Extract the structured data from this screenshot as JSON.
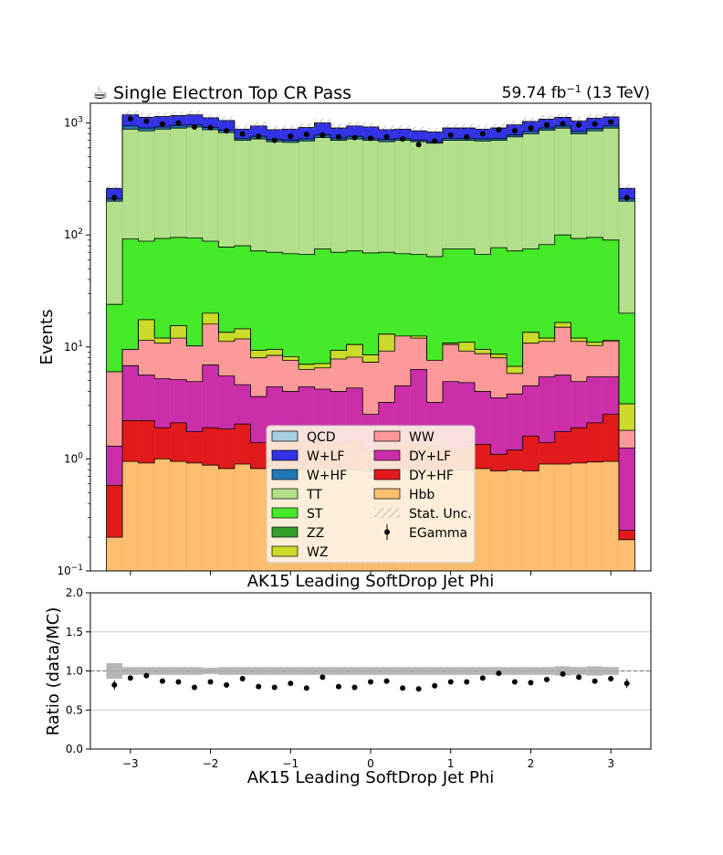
{
  "header": {
    "title_icon": "coffee-cup-icon",
    "title_icon_glyph": "☕",
    "title": "Single Electron Top CR Pass",
    "lumi": "59.74 fb",
    "lumi_exp": "−1",
    "energy": " (13 TeV)"
  },
  "chart_data": [
    {
      "type": "bar",
      "stacked": true,
      "log_y": true,
      "ylabel": "Events",
      "xlabel": "AK15 Leading SoftDrop Jet Phi",
      "xlim": [
        -3.5,
        3.5
      ],
      "ylim": [
        0.1,
        1500
      ],
      "yticks": [
        0.1,
        1,
        10,
        100,
        1000
      ],
      "ytick_labels": [
        {
          "base": "10",
          "exp": "−1"
        },
        {
          "base": "10",
          "exp": "0"
        },
        {
          "base": "10",
          "exp": "1"
        },
        {
          "base": "10",
          "exp": "2"
        },
        {
          "base": "10",
          "exp": "3"
        }
      ],
      "bin_edges": [
        -3.3,
        -3.1,
        -2.9,
        -2.7,
        -2.5,
        -2.3,
        -2.1,
        -1.9,
        -1.7,
        -1.5,
        -1.3,
        -1.1,
        -0.9,
        -0.7,
        -0.5,
        -0.3,
        -0.1,
        0.1,
        0.3,
        0.5,
        0.7,
        0.9,
        1.1,
        1.3,
        1.5,
        1.7,
        1.9,
        2.1,
        2.3,
        2.5,
        2.7,
        2.9,
        3.1,
        3.3
      ],
      "stack_order": [
        "Hbb",
        "DY+HF",
        "DY+LF",
        "WW",
        "WZ",
        "ZZ",
        "ST",
        "TT",
        "W+HF",
        "W+LF",
        "QCD"
      ],
      "cumulative_tops": [
        {
          "name": "Hbb",
          "values": [
            0.2,
            0.95,
            0.92,
            1.0,
            0.95,
            0.92,
            0.88,
            0.82,
            0.9,
            0.82,
            0.85,
            0.83,
            0.8,
            0.82,
            0.82,
            0.8,
            0.78,
            0.8,
            0.82,
            0.8,
            0.78,
            0.8,
            0.8,
            0.82,
            0.78,
            0.8,
            0.78,
            0.9,
            0.9,
            0.92,
            0.94,
            0.95,
            0.19
          ]
        },
        {
          "name": "DY+HF",
          "values": [
            0.58,
            2.2,
            2.2,
            1.9,
            2.1,
            1.75,
            1.9,
            1.85,
            2.05,
            1.4,
            1.5,
            1.55,
            1.45,
            1.5,
            1.4,
            1.45,
            1.2,
            1.3,
            1.4,
            1.35,
            1.3,
            1.25,
            1.3,
            1.35,
            1.1,
            1.2,
            1.6,
            1.4,
            1.75,
            1.9,
            2.1,
            2.5,
            0.23
          ]
        },
        {
          "name": "DY+LF",
          "values": [
            1.3,
            6.8,
            5.6,
            5.2,
            5.1,
            4.9,
            6.9,
            5.5,
            4.6,
            3.6,
            4.4,
            4.0,
            4.4,
            4.2,
            4.0,
            4.3,
            2.5,
            3.2,
            4.5,
            6.3,
            3.2,
            4.9,
            4.8,
            4.0,
            3.5,
            3.8,
            4.5,
            5.4,
            5.6,
            4.9,
            5.4,
            5.4,
            1.25
          ]
        },
        {
          "name": "WW",
          "values": [
            6.0,
            9.5,
            11.5,
            10.8,
            12.0,
            10.2,
            16.0,
            11.2,
            11.8,
            8.0,
            8.4,
            7.6,
            6.3,
            6.5,
            7.8,
            8.1,
            7.3,
            9.2,
            12.5,
            12.0,
            7.6,
            10.5,
            9.2,
            8.7,
            8.0,
            5.8,
            10.8,
            11.2,
            15.0,
            11.2,
            10.3,
            11.2,
            1.8
          ]
        },
        {
          "name": "WZ",
          "values": [
            6.0,
            9.5,
            17.5,
            12.0,
            15.5,
            10.2,
            20.0,
            13.5,
            14.5,
            9.3,
            9.5,
            8.2,
            7.0,
            7.1,
            9.3,
            10.5,
            8.5,
            13.0,
            12.5,
            12.5,
            7.6,
            10.8,
            11.0,
            9.5,
            8.6,
            6.7,
            13.5,
            12.0,
            16.5,
            12.0,
            11.0,
            11.5,
            3.1
          ]
        },
        {
          "name": "ZZ",
          "values": [
            6.0,
            9.5,
            17.5,
            12.0,
            15.5,
            10.2,
            20.0,
            13.5,
            14.5,
            9.3,
            9.5,
            8.2,
            7.0,
            7.1,
            9.3,
            10.5,
            8.5,
            13.0,
            12.5,
            12.5,
            7.6,
            10.8,
            11.0,
            9.5,
            8.6,
            6.7,
            13.5,
            12.0,
            16.5,
            12.0,
            11.0,
            11.5,
            3.1
          ]
        },
        {
          "name": "ST",
          "values": [
            24.0,
            92.0,
            88.0,
            93.0,
            95.0,
            94.0,
            88.0,
            78.0,
            80.0,
            72.0,
            70.0,
            68.0,
            67.0,
            75.0,
            70.0,
            72.0,
            69.0,
            70.0,
            68.0,
            67.0,
            64.0,
            75.0,
            75.0,
            67.0,
            77.0,
            72.0,
            75.0,
            82.0,
            100.0,
            93.0,
            95.0,
            90.0,
            20.0
          ]
        },
        {
          "name": "TT",
          "values": [
            200.0,
            880.0,
            850.0,
            880.0,
            900.0,
            920.0,
            870.0,
            820.0,
            700.0,
            720.0,
            680.0,
            670.0,
            690.0,
            740.0,
            700.0,
            720.0,
            700.0,
            680.0,
            700.0,
            680.0,
            660.0,
            700.0,
            700.0,
            690.0,
            700.0,
            750.0,
            800.0,
            860.0,
            900.0,
            800.0,
            850.0,
            900.0,
            200.0
          ]
        },
        {
          "name": "W+HF",
          "values": [
            210.0,
            940.0,
            900.0,
            920.0,
            950.0,
            960.0,
            910.0,
            860.0,
            730.0,
            760.0,
            710.0,
            700.0,
            720.0,
            780.0,
            730.0,
            760.0,
            730.0,
            710.0,
            730.0,
            700.0,
            680.0,
            730.0,
            730.0,
            720.0,
            730.0,
            780.0,
            840.0,
            900.0,
            940.0,
            840.0,
            890.0,
            940.0,
            210.0
          ]
        },
        {
          "name": "W+LF",
          "values": [
            260.0,
            1180.0,
            1120.0,
            1140.0,
            1160.0,
            1180.0,
            1110.0,
            1050.0,
            880.0,
            940.0,
            870.0,
            880.0,
            910.0,
            1000.0,
            900.0,
            940.0,
            920.0,
            870.0,
            880.0,
            850.0,
            830.0,
            900.0,
            900.0,
            880.0,
            900.0,
            960.0,
            1030.0,
            1080.0,
            1120.0,
            1040.0,
            1100.0,
            1130.0,
            260.0
          ]
        },
        {
          "name": "QCD",
          "values": [
            260.0,
            1180.0,
            1120.0,
            1140.0,
            1160.0,
            1180.0,
            1110.0,
            1050.0,
            880.0,
            940.0,
            870.0,
            880.0,
            910.0,
            1000.0,
            900.0,
            940.0,
            920.0,
            870.0,
            880.0,
            850.0,
            830.0,
            900.0,
            900.0,
            880.0,
            900.0,
            960.0,
            1030.0,
            1080.0,
            1120.0,
            1040.0,
            1100.0,
            1130.0,
            260.0
          ]
        }
      ],
      "data_points": {
        "name": "EGamma",
        "x": [
          -3.2,
          -3.0,
          -2.8,
          -2.6,
          -2.4,
          -2.2,
          -2.0,
          -1.8,
          -1.6,
          -1.4,
          -1.2,
          -1.0,
          -0.8,
          -0.6,
          -0.4,
          -0.2,
          0.0,
          0.2,
          0.4,
          0.6,
          0.8,
          1.0,
          1.2,
          1.4,
          1.6,
          1.8,
          2.0,
          2.2,
          2.4,
          2.6,
          2.8,
          3.0,
          3.2
        ],
        "y": [
          215,
          1090,
          1040,
          980,
          1000,
          920,
          910,
          850,
          800,
          760,
          700,
          760,
          790,
          780,
          750,
          740,
          730,
          750,
          720,
          640,
          690,
          780,
          750,
          800,
          870,
          850,
          900,
          960,
          980,
          960,
          980,
          1020,
          215
        ]
      }
    },
    {
      "type": "scatter",
      "ylabel": "Ratio (data/MC)",
      "xlabel": "AK15 Leading SoftDrop Jet Phi",
      "xlim": [
        -3.5,
        3.5
      ],
      "ylim": [
        0.0,
        2.0
      ],
      "yticks": [
        0.0,
        0.5,
        1.0,
        1.5,
        2.0
      ],
      "ytick_labels": [
        "0.0",
        "0.5",
        "1.0",
        "1.5",
        "2.0"
      ],
      "xticks": [
        -3,
        -2,
        -1,
        0,
        1,
        2,
        3
      ],
      "xtick_labels": [
        "−3",
        "−2",
        "−1",
        "0",
        "1",
        "2",
        "3"
      ],
      "grid_y": [
        0.5,
        1.0,
        1.5
      ],
      "reference_line": 1.0,
      "ratio": {
        "x": [
          -3.2,
          -3.0,
          -2.8,
          -2.6,
          -2.4,
          -2.2,
          -2.0,
          -1.8,
          -1.6,
          -1.4,
          -1.2,
          -1.0,
          -0.8,
          -0.6,
          -0.4,
          -0.2,
          0.0,
          0.2,
          0.4,
          0.6,
          0.8,
          1.0,
          1.2,
          1.4,
          1.6,
          1.8,
          2.0,
          2.2,
          2.4,
          2.6,
          2.8,
          3.0,
          3.2
        ],
        "y": [
          0.82,
          0.91,
          0.94,
          0.87,
          0.86,
          0.79,
          0.86,
          0.82,
          0.9,
          0.8,
          0.79,
          0.84,
          0.78,
          0.92,
          0.8,
          0.79,
          0.86,
          0.87,
          0.78,
          0.77,
          0.81,
          0.86,
          0.86,
          0.91,
          0.97,
          0.86,
          0.85,
          0.89,
          0.96,
          0.92,
          0.87,
          0.9,
          0.84
        ],
        "err": [
          0.06,
          0.03,
          0.03,
          0.03,
          0.03,
          0.03,
          0.03,
          0.03,
          0.03,
          0.03,
          0.03,
          0.03,
          0.03,
          0.03,
          0.03,
          0.03,
          0.03,
          0.03,
          0.03,
          0.03,
          0.03,
          0.03,
          0.03,
          0.03,
          0.03,
          0.03,
          0.03,
          0.03,
          0.03,
          0.03,
          0.03,
          0.03,
          0.06
        ]
      },
      "stat_band_halfwidth": [
        0.1,
        0.05,
        0.05,
        0.05,
        0.05,
        0.05,
        0.04,
        0.05,
        0.05,
        0.05,
        0.05,
        0.05,
        0.05,
        0.05,
        0.05,
        0.05,
        0.05,
        0.05,
        0.05,
        0.05,
        0.05,
        0.05,
        0.05,
        0.05,
        0.05,
        0.05,
        0.05,
        0.05,
        0.06,
        0.05,
        0.06,
        0.05,
        0.0
      ]
    }
  ],
  "legend": {
    "placement": "bottom-center",
    "entries": [
      {
        "key": "qcd",
        "label": "QCD",
        "kind": "box",
        "color": "#a6cee3"
      },
      {
        "key": "ww",
        "label": "WW",
        "kind": "box",
        "color": "#fb9a99"
      },
      {
        "key": "wlf",
        "label": "W+LF",
        "kind": "box",
        "color": "#3232e6"
      },
      {
        "key": "dylf",
        "label": "DY+LF",
        "kind": "box",
        "color": "#cc2eaa"
      },
      {
        "key": "whf",
        "label": "W+HF",
        "kind": "box",
        "color": "#1f78b4"
      },
      {
        "key": "dyhf",
        "label": "DY+HF",
        "kind": "box",
        "color": "#e31a1c"
      },
      {
        "key": "tt",
        "label": "TT",
        "kind": "box",
        "color": "#b2df8a"
      },
      {
        "key": "hbb",
        "label": "Hbb",
        "kind": "box",
        "color": "#fdbf6f"
      },
      {
        "key": "st",
        "label": "ST",
        "kind": "box",
        "color": "#44ea28"
      },
      {
        "key": "stat",
        "label": "Stat. Unc.",
        "kind": "hatch",
        "color": "#aaaaaa"
      },
      {
        "key": "zz",
        "label": "ZZ",
        "kind": "box",
        "color": "#33a02c"
      },
      {
        "key": "egamma",
        "label": "EGamma",
        "kind": "marker",
        "color": "#000000"
      },
      {
        "key": "wz",
        "label": "WZ",
        "kind": "box",
        "color": "#cadb2a"
      }
    ]
  },
  "colors": {
    "Hbb": "#fdbf6f",
    "DY+HF": "#e31a1c",
    "DY+LF": "#cc2eaa",
    "WW": "#fb9a99",
    "WZ": "#cadb2a",
    "ZZ": "#33a02c",
    "ST": "#44ea28",
    "TT": "#b2df8a",
    "W+HF": "#1f78b4",
    "W+LF": "#3232e6",
    "QCD": "#a6cee3",
    "legend_bg": "#fdf2e2",
    "band": "#a9a9a9"
  }
}
